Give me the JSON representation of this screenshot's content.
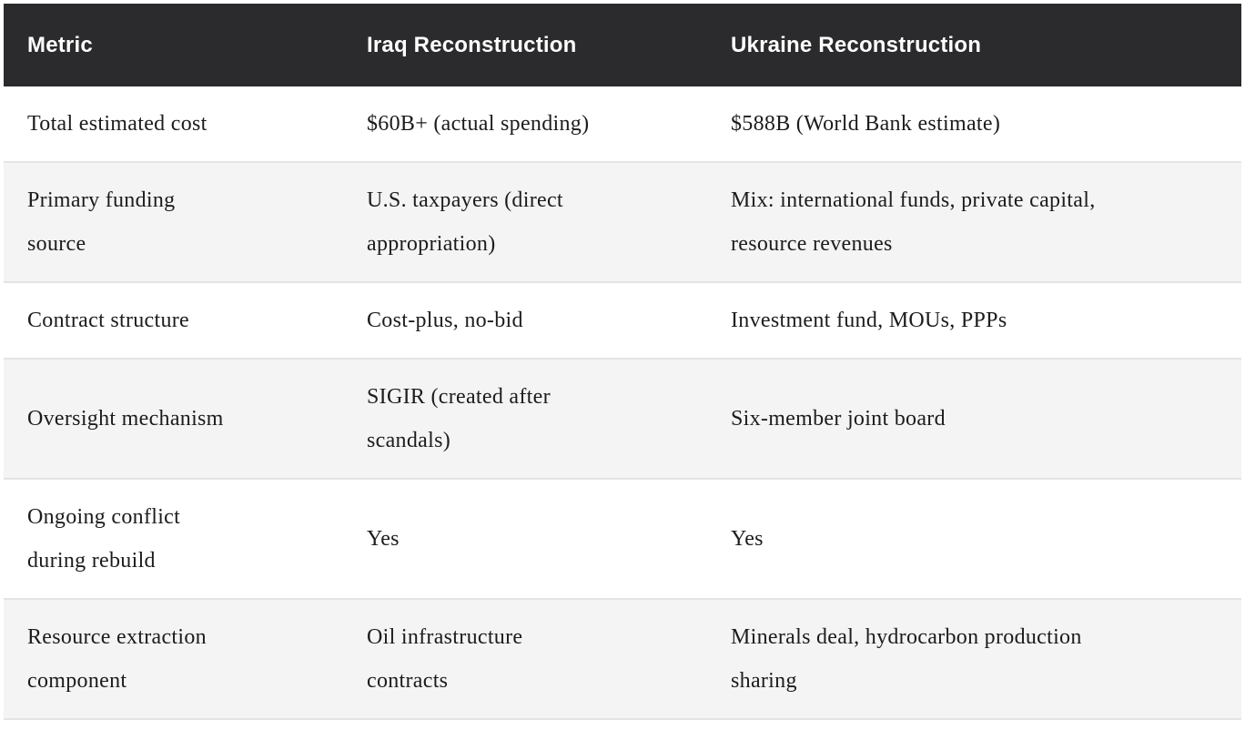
{
  "colors": {
    "header_bg": "#2b2b2d",
    "header_text": "#ffffff",
    "row_bg": "#ffffff",
    "row_alt_bg": "#f4f4f5",
    "body_text": "#1c1c1c",
    "row_border": "#e4e4e5"
  },
  "table": {
    "columns": [
      "Metric",
      "Iraq Reconstruction",
      "Ukraine Reconstruction"
    ],
    "rows": [
      {
        "cells": [
          "Total estimated cost",
          "$60B+ (actual spending)",
          "$588B (World Bank estimate)"
        ]
      },
      {
        "cells": [
          "Primary funding\nsource",
          "U.S. taxpayers (direct\nappropriation)",
          "Mix: international funds, private capital,\nresource revenues"
        ]
      },
      {
        "cells": [
          "Contract structure",
          "Cost-plus, no-bid",
          "Investment fund, MOUs, PPPs"
        ]
      },
      {
        "cells": [
          "Oversight mechanism",
          "SIGIR (created after\nscandals)",
          "Six-member joint board"
        ]
      },
      {
        "cells": [
          "Ongoing conflict\nduring rebuild",
          "Yes",
          "Yes"
        ]
      },
      {
        "cells": [
          "Resource extraction\ncomponent",
          "Oil infrastructure\ncontracts",
          "Minerals deal, hydrocarbon production\nsharing"
        ]
      }
    ]
  }
}
